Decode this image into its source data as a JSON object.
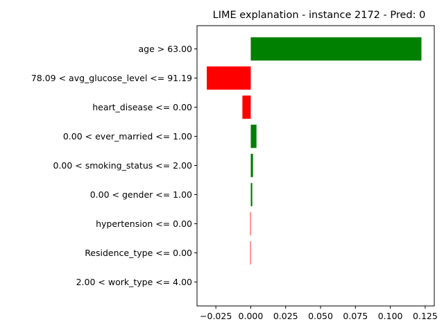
{
  "chart_data": {
    "type": "bar",
    "orientation": "horizontal",
    "title": "LIME explanation - instance 2172 - Pred: 0",
    "xlabel": "",
    "ylabel": "",
    "xlim": [
      -0.0385,
      0.1315
    ],
    "xticks": [
      -0.025,
      0.0,
      0.025,
      0.05,
      0.075,
      0.1,
      0.125
    ],
    "xtick_labels": [
      "−0.025",
      "0.000",
      "0.025",
      "0.050",
      "0.075",
      "0.100",
      "0.125"
    ],
    "grid": false,
    "categories": [
      "age > 63.00",
      "78.09 < avg_glucose_level <= 91.19",
      "heart_disease <= 0.00",
      "0.00 < ever_married <= 1.00",
      "0.00 < smoking_status <= 2.00",
      "0.00 < gender <= 1.00",
      "hypertension <= 0.00",
      "Residence_type <= 0.00",
      "2.00 < work_type <= 4.00"
    ],
    "values": [
      0.1223,
      -0.0315,
      -0.006,
      0.0041,
      0.0016,
      0.0011,
      -0.0004,
      -0.0004,
      0.0
    ],
    "colors": {
      "positive": "#008000",
      "negative": "#ff0000"
    }
  }
}
